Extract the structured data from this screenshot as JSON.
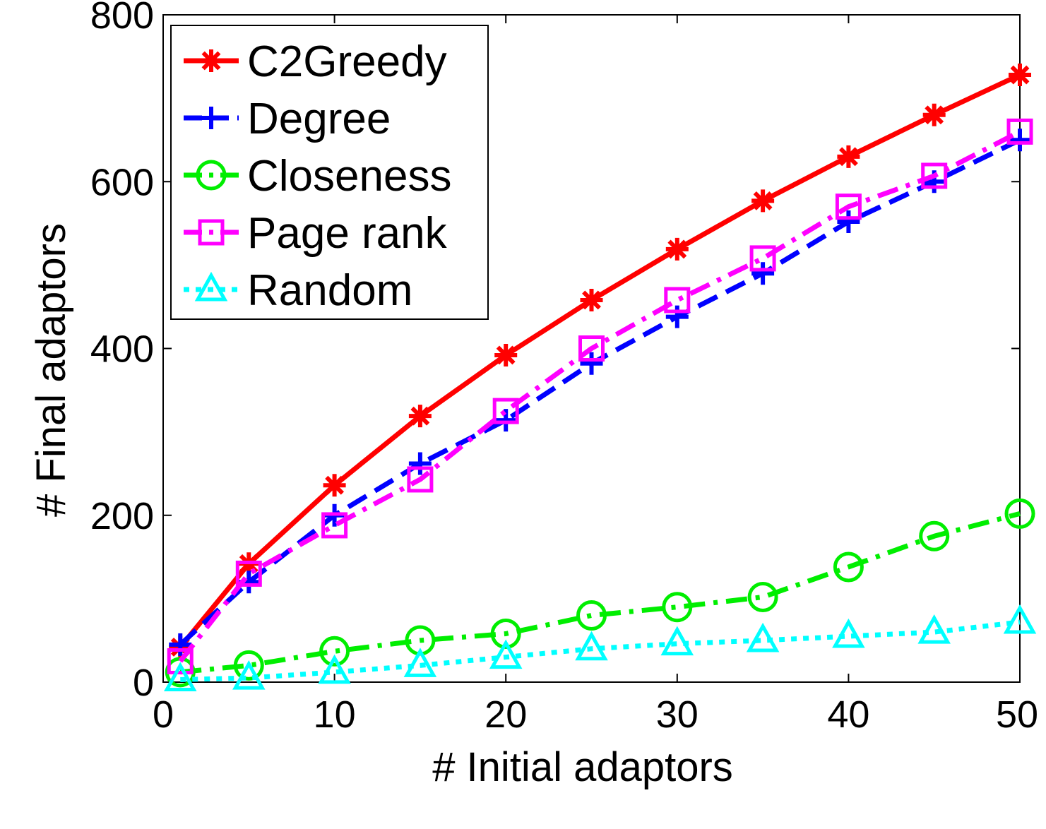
{
  "chart_data": {
    "type": "line",
    "title": "",
    "xlabel": "# Initial adaptors",
    "ylabel": "# Final adaptors",
    "xlim": [
      0,
      50
    ],
    "ylim": [
      0,
      800
    ],
    "xticks": [
      0,
      10,
      20,
      30,
      40,
      50
    ],
    "yticks": [
      0,
      200,
      400,
      600,
      800
    ],
    "xtick_labels": [
      "0",
      "10",
      "20",
      "30",
      "40",
      "50"
    ],
    "ytick_labels": [
      "0",
      "200",
      "400",
      "600",
      "800"
    ],
    "grid": false,
    "legend_position": "top-left",
    "x": [
      1,
      5,
      10,
      15,
      20,
      25,
      30,
      35,
      40,
      45,
      50
    ],
    "series": [
      {
        "name": "C2Greedy",
        "color": "#ff0000",
        "marker": "star",
        "dash": "solid",
        "values": [
          42,
          142,
          236,
          319,
          392,
          458,
          519,
          577,
          630,
          680,
          728
        ]
      },
      {
        "name": "Degree",
        "color": "#0000ff",
        "marker": "plus",
        "dash": "dashed",
        "values": [
          45,
          120,
          200,
          262,
          314,
          382,
          438,
          490,
          552,
          600,
          650
        ]
      },
      {
        "name": "Closeness",
        "color": "#00ee00",
        "marker": "circle",
        "dash": "dashdot",
        "values": [
          12,
          20,
          37,
          50,
          58,
          80,
          90,
          102,
          138,
          175,
          202
        ]
      },
      {
        "name": "Page rank",
        "color": "#ff00ff",
        "marker": "square",
        "dash": "dashdot",
        "values": [
          25,
          130,
          188,
          243,
          325,
          400,
          458,
          508,
          570,
          607,
          660
        ]
      },
      {
        "name": "Random",
        "color": "#00ffff",
        "marker": "triangle",
        "dash": "dotted",
        "values": [
          3,
          5,
          12,
          20,
          30,
          40,
          46,
          50,
          55,
          60,
          72
        ]
      }
    ]
  }
}
